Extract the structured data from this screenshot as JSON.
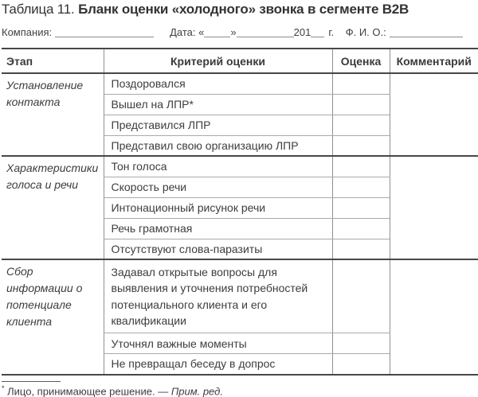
{
  "title": {
    "prefix": "Таблица 11.",
    "main": "Бланк оценки «холодного» звонка в сегменте B2B"
  },
  "form_line": {
    "company_label": "Компания:",
    "date_label": "Дата:",
    "quote_open": "«",
    "quote_close": "»",
    "year_prefix": "201",
    "year_suffix": "г.",
    "fio_label": "Ф. И. О.:"
  },
  "table": {
    "headers": [
      "Этап",
      "Критерий оценки",
      "Оценка",
      "Комментарий"
    ],
    "groups": [
      {
        "stage": "Установление контакта",
        "criteria": [
          "Поздоровался",
          "Вышел на ЛПР*",
          "Представился ЛПР",
          "Представил свою организацию ЛПР"
        ]
      },
      {
        "stage": "Характеристики голоса и речи",
        "criteria": [
          "Тон голоса",
          "Скорость речи",
          "Интонационный рисунок речи",
          "Речь грамотная",
          "Отсутствуют слова-паразиты"
        ]
      },
      {
        "stage": "Сбор информации о потенциале клиента",
        "criteria": [
          "Задавал открытые вопросы для выявления и уточнения потребностей потенциального клиента и его квалификации",
          "Уточнял важные моменты",
          "Не превращал беседу в допрос"
        ]
      }
    ]
  },
  "footnote": {
    "marker": "*",
    "text": " Лицо, принимающее решение. — ",
    "source": "Прим. ред."
  }
}
